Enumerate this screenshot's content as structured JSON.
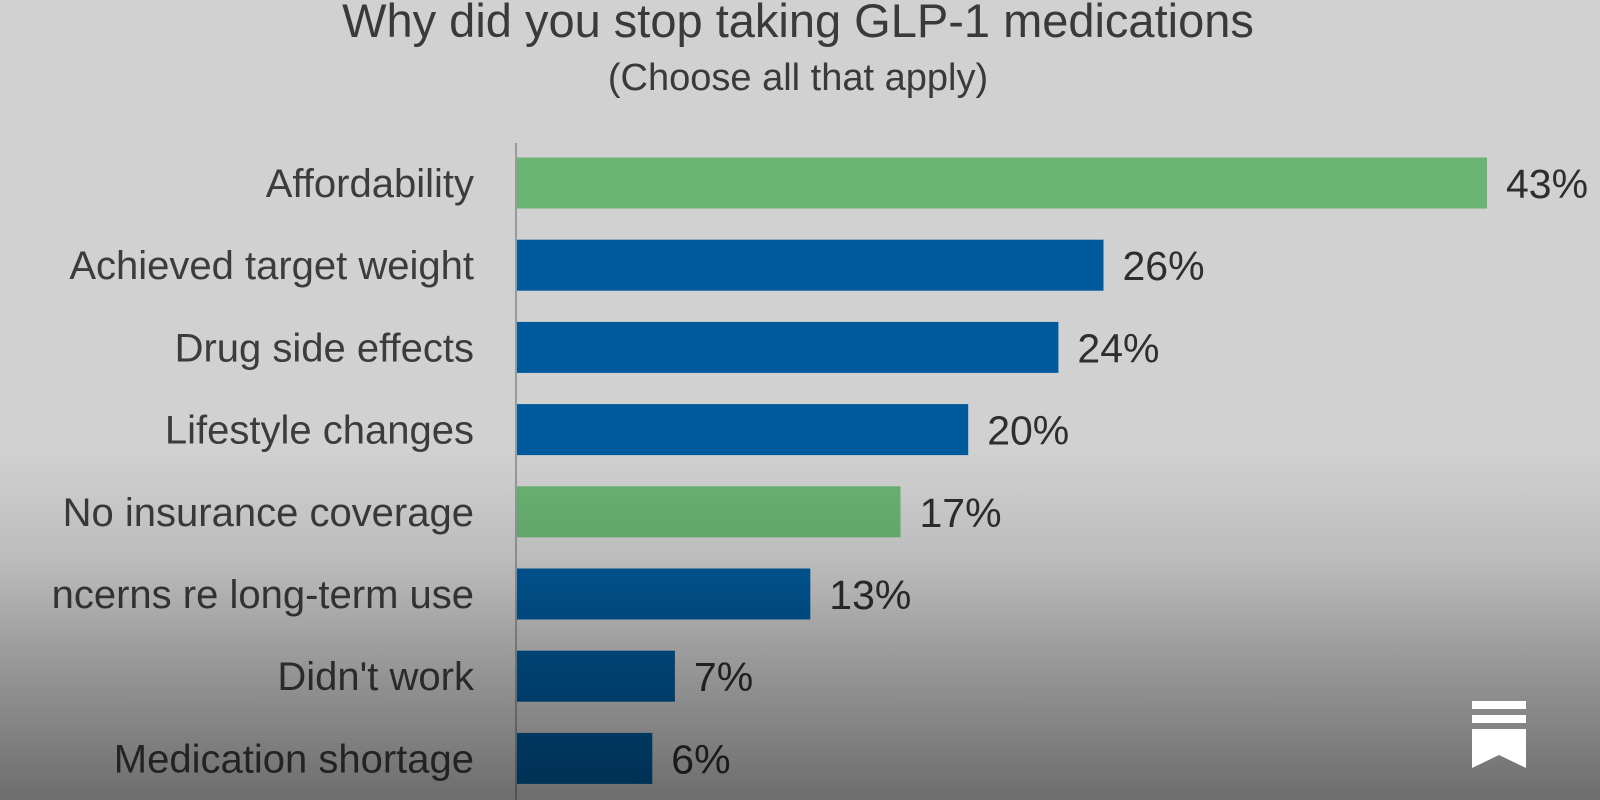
{
  "chart_data": {
    "type": "bar",
    "orientation": "horizontal",
    "title": "Why did you stop taking GLP-1 medications",
    "subtitle": "(Choose all that apply)",
    "categories": [
      "Affordability",
      "Achieved target weight",
      "Drug side effects",
      "Lifestyle changes",
      "No insurance coverage",
      "ncerns re long-term use",
      "Didn't work",
      "Medication shortage"
    ],
    "values": [
      43,
      26,
      24,
      20,
      17,
      13,
      7,
      6
    ],
    "value_labels": [
      "43%",
      "26%",
      "24%",
      "20%",
      "17%",
      "13%",
      "7%",
      "6%"
    ],
    "unit": "%",
    "bar_colors": [
      "#6ab474",
      "#005a9c",
      "#005a9c",
      "#005a9c",
      "#6ab474",
      "#005a9c",
      "#005a9c",
      "#005a9c"
    ],
    "xlim": [
      0,
      43
    ],
    "grid": false,
    "legend": "none"
  },
  "colors": {
    "background": "#d1d1d1",
    "highlight_bar": "#6ab474",
    "standard_bar": "#005a9c",
    "axis_line": "#9a9a9a",
    "text": "#3a3a3a"
  },
  "icons": {
    "corner": "bookmark-icon"
  }
}
